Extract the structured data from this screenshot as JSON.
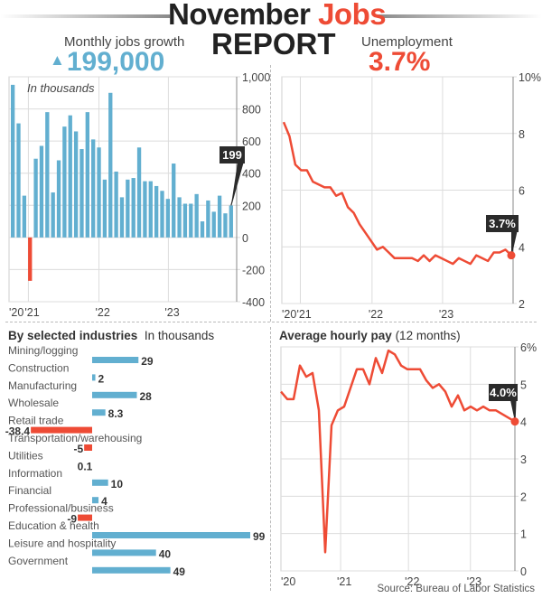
{
  "header": {
    "title_word1": "November",
    "title_word2": "Jobs",
    "title_line2": "REPORT",
    "jobs_label": "Monthly jobs growth",
    "jobs_value": "199,000",
    "jobs_icon": "up-triangle-icon",
    "unemp_label": "Unemployment",
    "unemp_value": "3.7%"
  },
  "colors": {
    "blue": "#62afd0",
    "red": "#ee4b35",
    "dark": "#2b2b2b"
  },
  "source": "Source: Bureau of Labor Statistics",
  "chart_data": [
    {
      "type": "bar",
      "title": "Monthly jobs growth",
      "annotation_note": "In thousands",
      "ylim": [
        -400,
        1000
      ],
      "yticks": [
        1000,
        800,
        600,
        400,
        200,
        0,
        -200,
        -400
      ],
      "ytick_labels": [
        "1,000",
        "800",
        "600",
        "400",
        "200",
        "0",
        "-200",
        "-400"
      ],
      "xtick_labels": [
        "'20",
        "'21",
        "'22",
        "'23"
      ],
      "values": [
        950,
        710,
        260,
        -270,
        490,
        570,
        780,
        280,
        480,
        690,
        760,
        660,
        550,
        780,
        610,
        560,
        360,
        900,
        410,
        250,
        360,
        370,
        560,
        350,
        350,
        320,
        290,
        240,
        460,
        250,
        210,
        210,
        270,
        100,
        230,
        160,
        260,
        150,
        199
      ],
      "callout": "199",
      "grid": true
    },
    {
      "type": "line",
      "title": "Unemployment",
      "ylim": [
        2,
        10
      ],
      "yticks": [
        10,
        8,
        6,
        4,
        2
      ],
      "ytick_labels": [
        "10%",
        "8",
        "6",
        "4",
        "2"
      ],
      "xtick_labels": [
        "'20",
        "'21",
        "'22",
        "'23"
      ],
      "values": [
        8.4,
        7.9,
        6.9,
        6.7,
        6.7,
        6.3,
        6.2,
        6.1,
        6.1,
        5.8,
        5.9,
        5.4,
        5.2,
        4.8,
        4.5,
        4.2,
        3.9,
        4.0,
        3.8,
        3.6,
        3.6,
        3.6,
        3.6,
        3.5,
        3.7,
        3.5,
        3.7,
        3.6,
        3.5,
        3.4,
        3.6,
        3.5,
        3.4,
        3.7,
        3.6,
        3.5,
        3.8,
        3.8,
        3.9,
        3.7
      ],
      "callout": "3.7%",
      "grid": true
    },
    {
      "type": "bar",
      "orientation": "horizontal",
      "title": "By selected industries",
      "subtitle": "In thousands",
      "categories": [
        "Mining/logging",
        "Construction",
        "Manufacturing",
        "Wholesale",
        "Retail trade",
        "Transportation/warehousing",
        "Utilities",
        "Information",
        "Financial",
        "Professional/business",
        "Education & health",
        "Leisure and hospitality",
        "Government"
      ],
      "values": [
        29,
        2,
        28,
        8.3,
        -38.4,
        -5,
        0.1,
        10,
        4,
        -9,
        99,
        40,
        49
      ],
      "value_labels": [
        "29",
        "2",
        "28",
        "8.3",
        "-38.4",
        "-5",
        "0.1",
        "10",
        "4",
        "-9",
        "99",
        "40",
        "49"
      ]
    },
    {
      "type": "line",
      "title": "Average hourly pay",
      "subtitle": "(12 months)",
      "ylim": [
        0,
        6
      ],
      "yticks": [
        6,
        5,
        4,
        3,
        2,
        1,
        0
      ],
      "ytick_labels": [
        "6%",
        "5",
        "4",
        "3",
        "2",
        "1",
        "0"
      ],
      "xtick_labels": [
        "'20",
        "'21",
        "'22",
        "'23"
      ],
      "values": [
        4.8,
        4.6,
        4.6,
        5.5,
        5.2,
        5.3,
        4.3,
        0.5,
        3.9,
        4.3,
        4.4,
        4.9,
        5.4,
        5.4,
        5.0,
        5.7,
        5.3,
        5.9,
        5.8,
        5.5,
        5.4,
        5.4,
        5.4,
        5.1,
        4.9,
        5.0,
        4.8,
        4.4,
        4.7,
        4.3,
        4.4,
        4.3,
        4.4,
        4.3,
        4.3,
        4.2,
        4.1,
        4.0
      ],
      "callout": "4.0%",
      "grid": true
    }
  ]
}
